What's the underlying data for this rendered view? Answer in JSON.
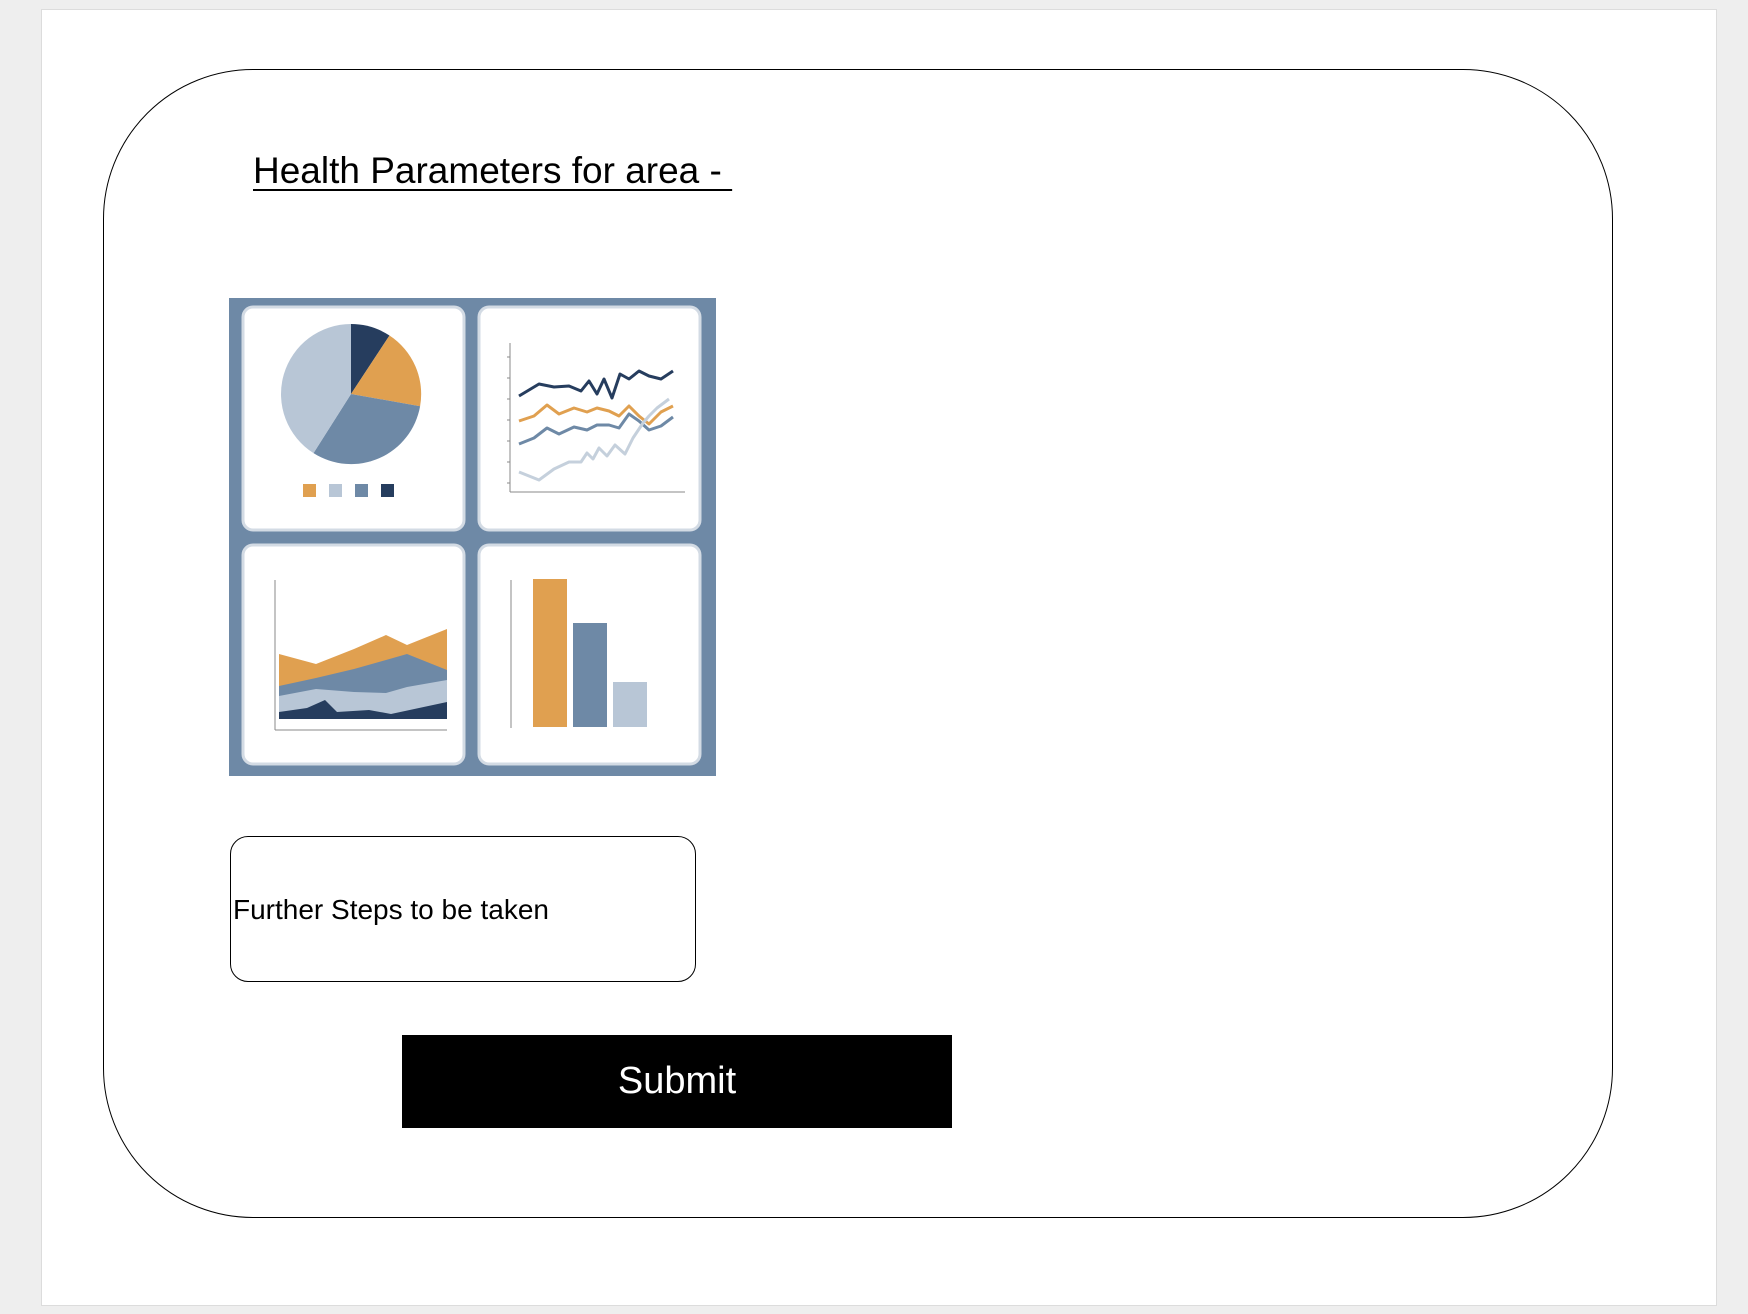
{
  "form": {
    "title": "Health Parameters for area - ",
    "further_steps_label": "Further Steps to be taken",
    "submit_label": "Submit"
  },
  "dashboard_image": {
    "name": "health-charts-illustration",
    "colors": {
      "frame": "#6e89a6",
      "orange": "#e0a050",
      "light_blue": "#b8c6d6",
      "mid_blue": "#6e89a6",
      "navy": "#263d5e"
    }
  }
}
